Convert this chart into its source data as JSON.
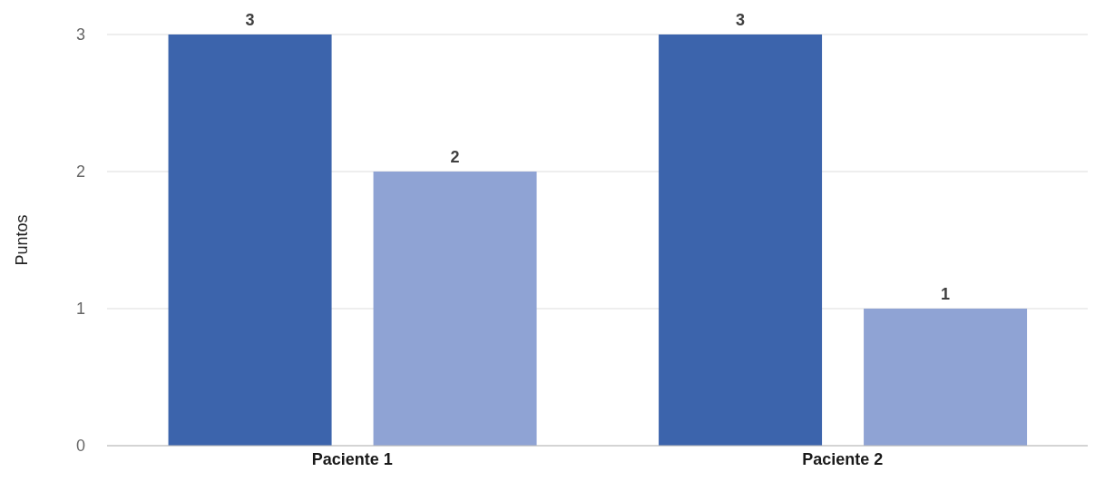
{
  "chart_data": {
    "type": "bar",
    "ylabel": "Puntos",
    "categories": [
      "Paciente 1",
      "Paciente 2"
    ],
    "series": [
      {
        "color": "#3c64ac",
        "values": [
          3,
          3
        ]
      },
      {
        "color": "#8fa3d4",
        "values": [
          2,
          1
        ]
      }
    ],
    "ylim": [
      0,
      3
    ],
    "yticks": [
      0,
      1,
      2,
      3
    ],
    "grid": "y",
    "data_labels": true,
    "legend": false
  }
}
